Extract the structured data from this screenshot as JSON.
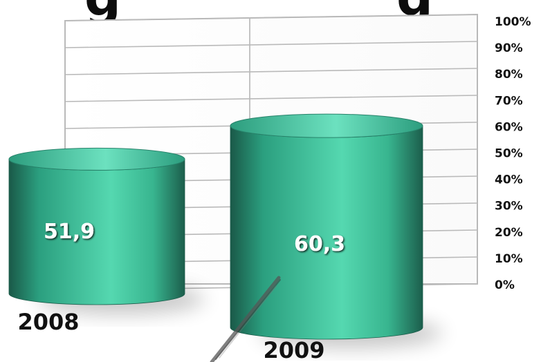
{
  "header": {
    "cut_title_left": "g",
    "cut_title_right": "g"
  },
  "colors": {
    "accent": "#3fbf9a",
    "accent_dark": "#1c5d4b",
    "accent_light": "#87e7c9",
    "grid": "#b9b9b9",
    "text": "#111111",
    "value_text": "#ffffff"
  },
  "chart_data": {
    "type": "bar",
    "style": "3d-cylinder",
    "categories": [
      "2008",
      "2009"
    ],
    "values": [
      51.9,
      60.3
    ],
    "value_labels": [
      "51,9",
      "60,3"
    ],
    "title": "",
    "xlabel": "",
    "ylabel": "",
    "ylim": [
      0,
      100
    ],
    "y_ticks": [
      "0%",
      "10%",
      "20%",
      "30%",
      "40%",
      "50%",
      "60%",
      "70%",
      "80%",
      "90%",
      "100%"
    ],
    "grid": true,
    "legend": "none"
  }
}
